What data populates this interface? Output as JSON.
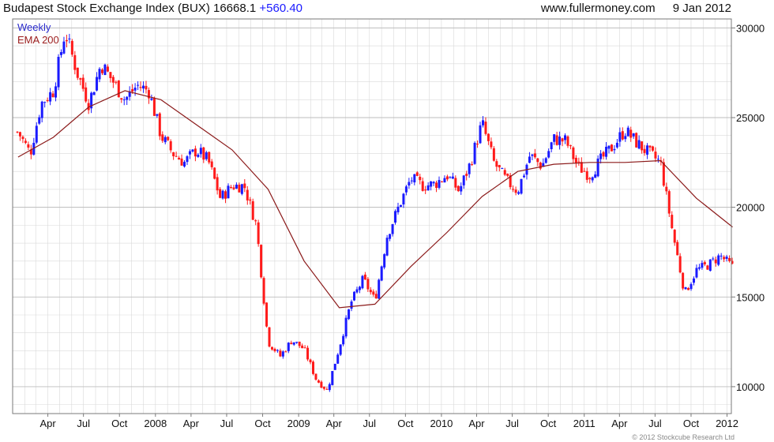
{
  "header": {
    "title": "Budapest Stock Exchange Index (BUX)",
    "last": "16668.1",
    "change": "+560.40",
    "site": "www.fullermoney.com",
    "date": "9 Jan 2012"
  },
  "footer": {
    "copyright": "© 2012 Stockcube Research Ltd"
  },
  "colors": {
    "up": "#1a1aff",
    "down": "#ff1a1a",
    "ema": "#8b1a1a",
    "grid": "#d9d9d9",
    "frame": "#7a7a7a"
  },
  "chart_data": {
    "type": "line",
    "subtype": "weekly candlestick with moving average",
    "series": [
      {
        "name": "Weekly",
        "x": [
          "2007-01",
          "2007-02",
          "2007-03",
          "2007-04",
          "2007-05",
          "2007-06",
          "2007-07",
          "2007-08",
          "2007-09",
          "2007-10",
          "2007-11",
          "2007-12",
          "2008-01",
          "2008-02",
          "2008-03",
          "2008-04",
          "2008-05",
          "2008-06",
          "2008-07",
          "2008-08",
          "2008-09",
          "2008-10",
          "2008-11",
          "2008-12",
          "2009-01",
          "2009-02",
          "2009-03",
          "2009-04",
          "2009-05",
          "2009-06",
          "2009-07",
          "2009-08",
          "2009-09",
          "2009-10",
          "2009-11",
          "2009-12",
          "2010-01",
          "2010-02",
          "2010-03",
          "2010-04",
          "2010-05",
          "2010-06",
          "2010-07",
          "2010-08",
          "2010-09",
          "2010-10",
          "2010-11",
          "2010-12",
          "2011-01",
          "2011-02",
          "2011-03",
          "2011-04",
          "2011-05",
          "2011-06",
          "2011-07",
          "2011-08",
          "2011-09",
          "2011-10",
          "2011-11",
          "2011-12",
          "2012-01"
        ],
        "values": [
          24200,
          23000,
          25800,
          26500,
          29800,
          27500,
          25800,
          28000,
          27000,
          26000,
          26800,
          26500,
          24000,
          23000,
          22500,
          23200,
          22600,
          20500,
          21200,
          21200,
          19000,
          12500,
          11700,
          12600,
          12100,
          10400,
          9800,
          12200,
          14700,
          16000,
          14800,
          18400,
          20100,
          21600,
          21200,
          21300,
          21800,
          20900,
          22400,
          24700,
          22500,
          21500,
          20900,
          22900,
          22300,
          23800,
          23700,
          22300,
          21800,
          22700,
          23400,
          24300,
          23600,
          23000,
          22500,
          18600,
          15200,
          16500,
          16800,
          17300,
          16668
        ]
      },
      {
        "name": "EMA 200",
        "x": [
          "2007-01",
          "2007-04",
          "2007-07",
          "2007-10",
          "2008-01",
          "2008-04",
          "2008-07",
          "2008-10",
          "2009-01",
          "2009-04",
          "2009-07",
          "2009-10",
          "2010-01",
          "2010-04",
          "2010-07",
          "2010-10",
          "2011-01",
          "2011-04",
          "2011-07",
          "2011-10",
          "2012-01"
        ],
        "values": [
          22800,
          23900,
          25600,
          26500,
          26000,
          24600,
          23200,
          21000,
          17000,
          14400,
          14600,
          16700,
          18600,
          20600,
          22000,
          22400,
          22500,
          22500,
          22600,
          20500,
          18900
        ]
      }
    ],
    "xlabel": "",
    "ylabel": "",
    "ylim": [
      8500,
      30500
    ],
    "yticks": [
      10000,
      15000,
      20000,
      25000,
      30000
    ],
    "xtick_labels": [
      "Apr",
      "Jul",
      "Oct",
      "2008",
      "Apr",
      "Jul",
      "Oct",
      "2009",
      "Apr",
      "Jul",
      "Oct",
      "2010",
      "Apr",
      "Jul",
      "Oct",
      "2011",
      "Apr",
      "Jul",
      "Oct",
      "2012"
    ],
    "grid": true,
    "legend": "top-left",
    "y_axis_side": "right"
  }
}
